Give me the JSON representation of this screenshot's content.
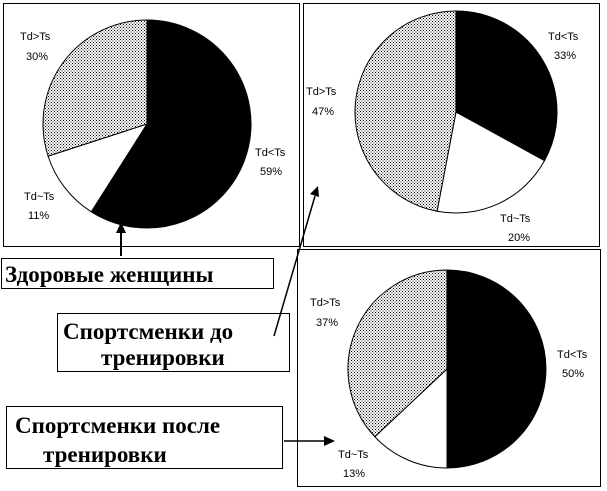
{
  "chart_data": [
    {
      "type": "pie",
      "group": "Здоровые женщины",
      "slices": [
        {
          "name": "Td<Ts",
          "value": 59,
          "label_name": "Td<Ts",
          "label_value": "59%",
          "color": "#000000"
        },
        {
          "name": "Td~Ts",
          "value": 11,
          "label_name": "Td~Ts",
          "label_value": "11%",
          "color": "#ffffff"
        },
        {
          "name": "Td>Ts",
          "value": 30,
          "label_name": "Td>Ts",
          "label_value": "30%",
          "color": "dotted"
        }
      ]
    },
    {
      "type": "pie",
      "group": "Спортсменки до тренировки",
      "slices": [
        {
          "name": "Td<Ts",
          "value": 33,
          "label_name": "Td<Ts",
          "label_value": "33%",
          "color": "#000000"
        },
        {
          "name": "Td~Ts",
          "value": 20,
          "label_name": "Td~Ts",
          "label_value": "20%",
          "color": "#ffffff"
        },
        {
          "name": "Td>Ts",
          "value": 47,
          "label_name": "Td>Ts",
          "label_value": "47%",
          "color": "dotted"
        }
      ]
    },
    {
      "type": "pie",
      "group": "Спортсменки после тренировки",
      "slices": [
        {
          "name": "Td<Ts",
          "value": 50,
          "label_name": "Td<Ts",
          "label_value": "50%",
          "color": "#000000"
        },
        {
          "name": "Td~Ts",
          "value": 13,
          "label_name": "Td~Ts",
          "label_value": "13%",
          "color": "#ffffff"
        },
        {
          "name": "Td>Ts",
          "value": 37,
          "label_name": "Td>Ts",
          "label_value": "37%",
          "color": "dotted"
        }
      ]
    }
  ],
  "captions": {
    "healthy": "Здоровые женщины",
    "before_line1": "Спортсменки до",
    "before_line2": "тренировки",
    "after_line1": "Спортсменки после",
    "after_line2": "тренировки"
  }
}
